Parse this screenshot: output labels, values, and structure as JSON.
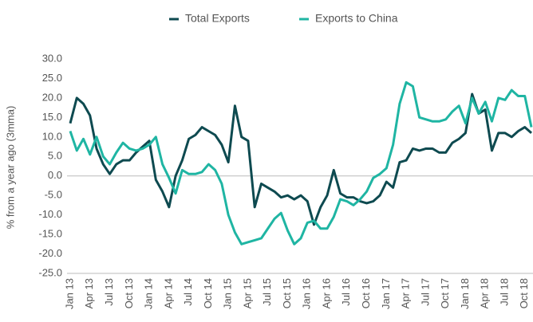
{
  "chart_data": {
    "type": "line",
    "ylabel": "% from a year ago (3mma)",
    "categories": [
      "Jan 13",
      null,
      null,
      "Apr 13",
      null,
      null,
      "Jul 13",
      null,
      null,
      "Oct 13",
      null,
      null,
      "Jan 14",
      null,
      null,
      "Apr 14",
      null,
      null,
      "Jul 14",
      null,
      null,
      "Oct 14",
      null,
      null,
      "Jan 15",
      null,
      null,
      "Apr 15",
      null,
      null,
      "Jul 15",
      null,
      null,
      "Oct 15",
      null,
      null,
      "Jan 16",
      null,
      null,
      "Apr 16",
      null,
      null,
      "Jul 16",
      null,
      null,
      "Oct 16",
      null,
      null,
      "Jan 17",
      null,
      null,
      "Apr 17",
      null,
      null,
      "Jul 17",
      null,
      null,
      "Oct 17",
      null,
      null,
      "Jan 18",
      null,
      null,
      "Apr 18",
      null,
      null,
      "Jul 18",
      null,
      null,
      "Oct 18",
      null
    ],
    "series": [
      {
        "name": "Total Exports",
        "color": "#0e4a50",
        "values": [
          13.5,
          20,
          18.5,
          15.5,
          7,
          3,
          0.5,
          3,
          4,
          4,
          6,
          7.5,
          9,
          -1,
          -4,
          -8,
          0,
          4,
          9.5,
          10.5,
          12.5,
          11.5,
          10.5,
          8,
          3.5,
          18,
          10,
          9,
          -8,
          -2,
          -3,
          -4,
          -5.5,
          -5,
          -6,
          -5,
          -6.5,
          -12.5,
          -8,
          -5,
          1.5,
          -4.5,
          -5.5,
          -5.5,
          -6.5,
          -7,
          -6.5,
          -5,
          -1.5,
          -3,
          3.5,
          4,
          7,
          6.5,
          7,
          7,
          6,
          6,
          8.5,
          9.5,
          11,
          21,
          16,
          17,
          6.5,
          11,
          11,
          10,
          11.5,
          12.5,
          11
        ]
      },
      {
        "name": "Exports to China",
        "color": "#1fb5a3",
        "values": [
          11.5,
          6.5,
          9.5,
          5.5,
          10,
          5,
          3,
          6,
          8.5,
          7,
          6.5,
          7,
          8,
          10,
          3,
          -0.5,
          -4.5,
          1.5,
          0.5,
          0.5,
          1,
          3,
          1.5,
          -2,
          -10,
          -14.5,
          -17.5,
          -17,
          -16.5,
          -16,
          -13.5,
          -11,
          -9.5,
          -14,
          -17.5,
          -16,
          -12,
          -11.5,
          -13.5,
          -13.5,
          -10.5,
          -6,
          -6.5,
          -7.5,
          -6,
          -4,
          -0.5,
          0.5,
          2,
          8,
          18.5,
          24,
          23,
          15,
          14.5,
          14,
          14,
          14.5,
          16.5,
          18,
          13.5,
          20,
          16,
          19,
          14,
          20,
          19.5,
          22,
          20.5,
          20.5,
          12.5
        ]
      }
    ],
    "ylim": [
      -25,
      30
    ],
    "yticks": [
      {
        "value": 30,
        "label": "30.0"
      },
      {
        "value": 25,
        "label": "25.0"
      },
      {
        "value": 20,
        "label": "20.0"
      },
      {
        "value": 15,
        "label": "15.0"
      },
      {
        "value": 10,
        "label": "10.0"
      },
      {
        "value": 5,
        "label": "5.0"
      },
      {
        "value": 0,
        "label": "0.0"
      },
      {
        "value": -5,
        "label": "-5.0"
      },
      {
        "value": -10,
        "label": "-10.0"
      },
      {
        "value": -15,
        "label": "-15.0"
      },
      {
        "value": -20,
        "label": "-20.0"
      },
      {
        "value": -25,
        "label": "-25.0"
      }
    ],
    "legend": "top",
    "grid": false
  }
}
